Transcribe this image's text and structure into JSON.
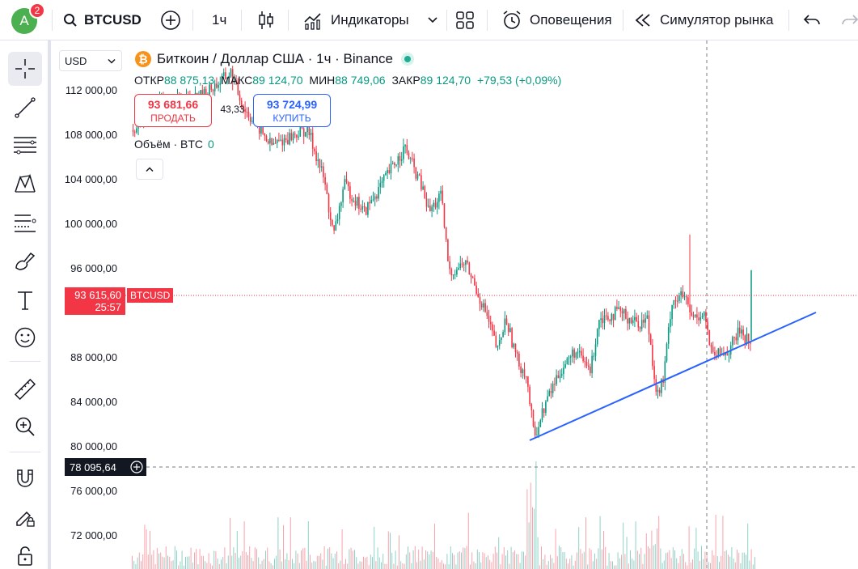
{
  "user": {
    "avatar_letter": "A",
    "notifications": "2"
  },
  "toolbar": {
    "symbol": "BTCUSD",
    "interval": "1ч",
    "indicators": "Индикаторы",
    "alerts": "Оповещения",
    "replay": "Симулятор рынка"
  },
  "legend": {
    "title": "Биткоин / Доллар США · 1ч · Binance",
    "open_label": "ОТКР",
    "open": "88 875,13",
    "high_label": "МАКС",
    "high": "89 124,70",
    "low_label": "МИН",
    "low": "88 749,06",
    "close_label": "ЗАКР",
    "close": "89 124,70",
    "change": "+79,53 (+0,09%)"
  },
  "trade": {
    "sell_price": "93 681,66",
    "sell_label": "ПРОДАТЬ",
    "spread": "43,33",
    "buy_price": "93 724,99",
    "buy_label": "КУПИТЬ"
  },
  "volume": {
    "label": "Объём · BTC",
    "value": "0"
  },
  "currency": "USD",
  "price_axis": {
    "labels": [
      "112 000,00",
      "108 000,00",
      "104 000,00",
      "100 000,00",
      "96 000,00",
      "88 000,00",
      "84 000,00",
      "80 000,00",
      "76 000,00",
      "72 000,00"
    ],
    "current_price": "93 615,60",
    "countdown": "25:57",
    "symbol_tag": "BTCUSD",
    "crosshair_price": "78 095,64"
  },
  "colors": {
    "up": "#089981",
    "down": "#f23645",
    "trendline": "#2962ff",
    "accent": "#2962ff"
  },
  "icons": [
    "plus-circle-icon",
    "candles-icon",
    "indicators-icon",
    "layouts-icon",
    "alarm-icon",
    "replay-icon",
    "undo-icon",
    "redo-icon",
    "crosshair-icon",
    "trendline-icon",
    "fib-icon",
    "pattern-icon",
    "forecast-icon",
    "brush-icon",
    "text-icon",
    "emoji-icon",
    "ruler-icon",
    "zoom-icon",
    "magnet-icon",
    "lock-pencil-icon",
    "lock-icon",
    "search-icon",
    "bitcoin-icon"
  ]
}
